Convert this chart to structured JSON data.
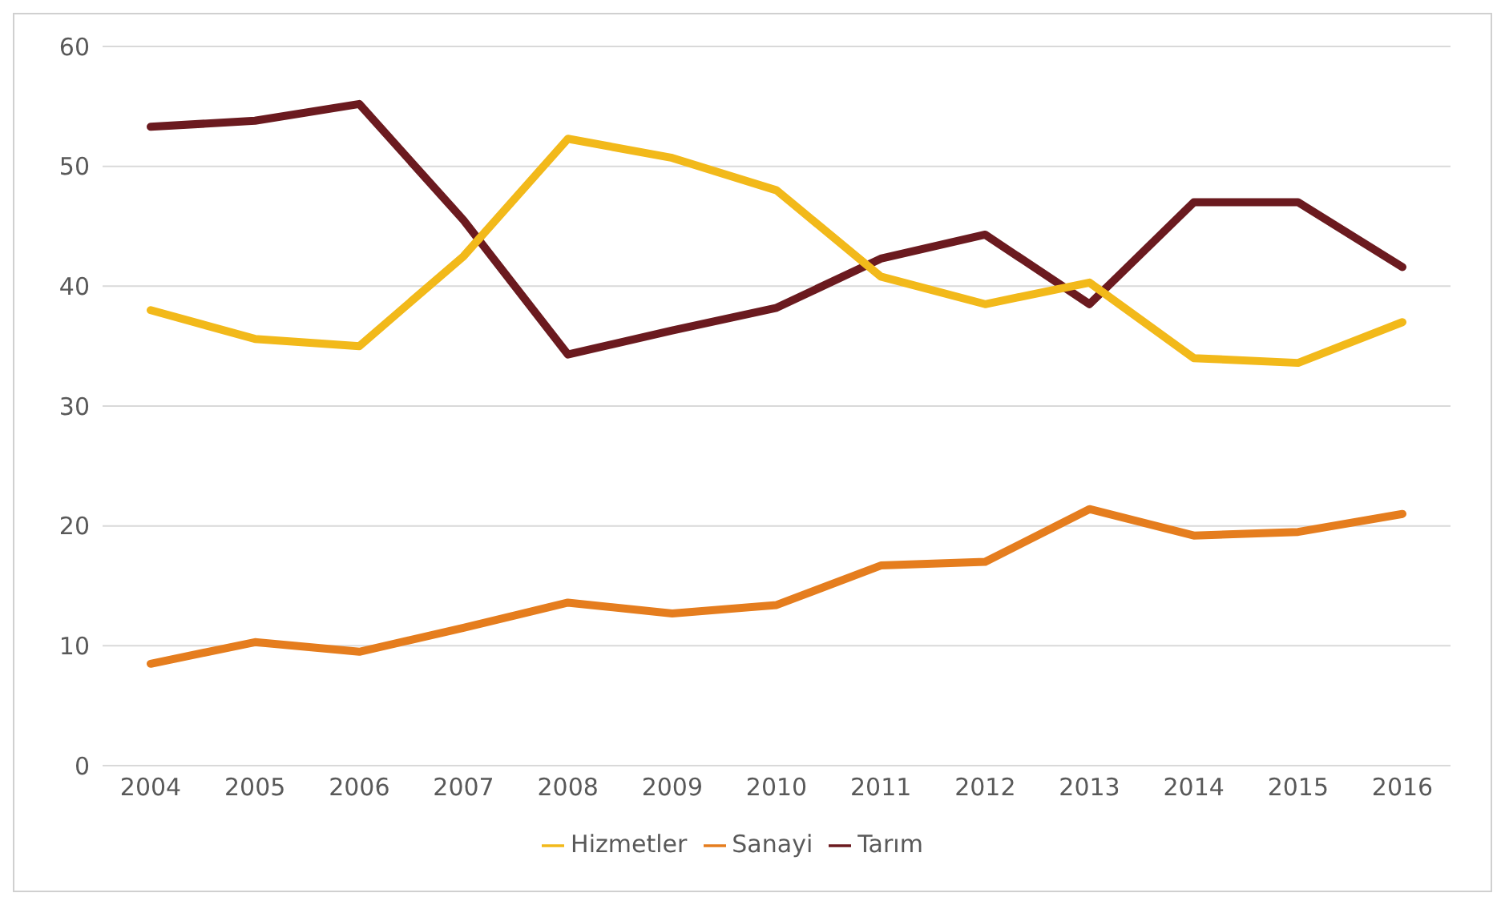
{
  "chart_data": {
    "type": "line",
    "categories": [
      "2004",
      "2005",
      "2006",
      "2007",
      "2008",
      "2009",
      "2010",
      "2011",
      "2012",
      "2013",
      "2014",
      "2015",
      "2016"
    ],
    "series": [
      {
        "name": "Tarım",
        "color": "#6b1a1f",
        "values": [
          53.3,
          53.8,
          55.2,
          45.5,
          34.3,
          36.3,
          38.2,
          42.3,
          44.3,
          38.5,
          47,
          47,
          41.6
        ]
      },
      {
        "name": "Sanayi",
        "color": "#e57d1e",
        "values": [
          8.5,
          10.3,
          9.5,
          11.5,
          13.6,
          12.7,
          13.4,
          16.7,
          17,
          21.4,
          19.2,
          19.5,
          21
        ]
      },
      {
        "name": "Hizmetler",
        "color": "#f2b91a",
        "values": [
          38,
          35.6,
          35,
          42.5,
          52.3,
          50.7,
          48,
          40.8,
          38.5,
          40.3,
          34,
          33.6,
          37
        ]
      }
    ],
    "ylim": [
      0,
      60
    ],
    "yticks": [
      0,
      10,
      20,
      30,
      40,
      50,
      60
    ],
    "grid": "y",
    "legend": "bottom",
    "marker": "none",
    "line_style": "solid"
  }
}
